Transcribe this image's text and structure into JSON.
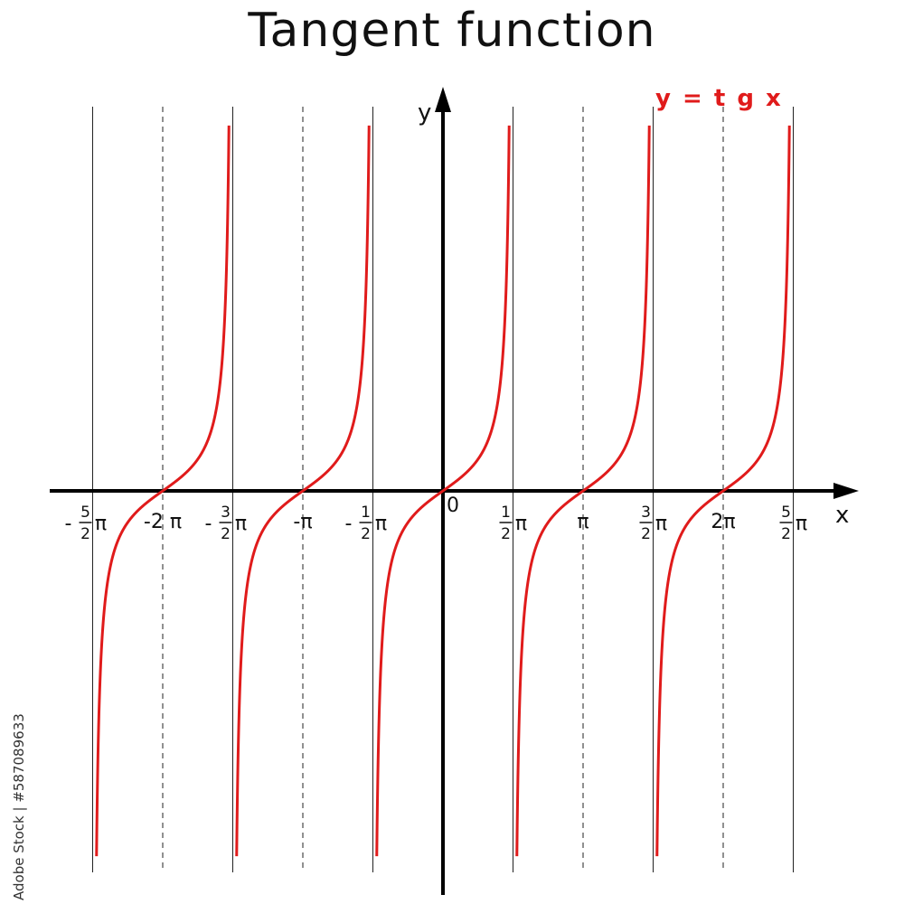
{
  "chart_data": {
    "type": "line",
    "title": "Tangent function",
    "xlabel": "x",
    "ylabel": "y",
    "origin_label": "0",
    "legend": {
      "label": "y = t g x",
      "position": "top-right",
      "color": "#e01b1b"
    },
    "series": [
      {
        "name": "y = t g x",
        "function": "tan(x)",
        "color": "#e01b1b",
        "branches": [
          {
            "x_range_pi": [
              -2.5,
              -1.5
            ]
          },
          {
            "x_range_pi": [
              -1.5,
              -0.5
            ]
          },
          {
            "x_range_pi": [
              -0.5,
              0.5
            ]
          },
          {
            "x_range_pi": [
              0.5,
              1.5
            ]
          },
          {
            "x_range_pi": [
              1.5,
              2.5
            ]
          }
        ]
      }
    ],
    "xlim_pi": [
      -2.8,
      3.0
    ],
    "ylim": [
      -12,
      12
    ],
    "x_ticks": [
      {
        "value_pi": -2.5,
        "sign": "-",
        "num": "5",
        "den": "2",
        "sym": "π"
      },
      {
        "value_pi": -2,
        "text": "-2 π"
      },
      {
        "value_pi": -1.5,
        "sign": "-",
        "num": "3",
        "den": "2",
        "sym": "π"
      },
      {
        "value_pi": -1,
        "text": "-π"
      },
      {
        "value_pi": -0.5,
        "sign": "-",
        "num": "1",
        "den": "2",
        "sym": "π"
      },
      {
        "value_pi": 0.5,
        "sign": "",
        "num": "1",
        "den": "2",
        "sym": "π"
      },
      {
        "value_pi": 1,
        "text": "π"
      },
      {
        "value_pi": 1.5,
        "sign": "",
        "num": "3",
        "den": "2",
        "sym": "π"
      },
      {
        "value_pi": 2,
        "text": "2π"
      },
      {
        "value_pi": 2.5,
        "sign": "",
        "num": "5",
        "den": "2",
        "sym": "π"
      }
    ],
    "solid_lines_pi": [
      -2.5,
      -1.5,
      -0.5,
      0.5,
      1.5,
      2.5
    ],
    "dashed_lines_pi": [
      -2,
      -1,
      1,
      2
    ],
    "grid": false
  },
  "watermark": "Adobe Stock | #587089633"
}
